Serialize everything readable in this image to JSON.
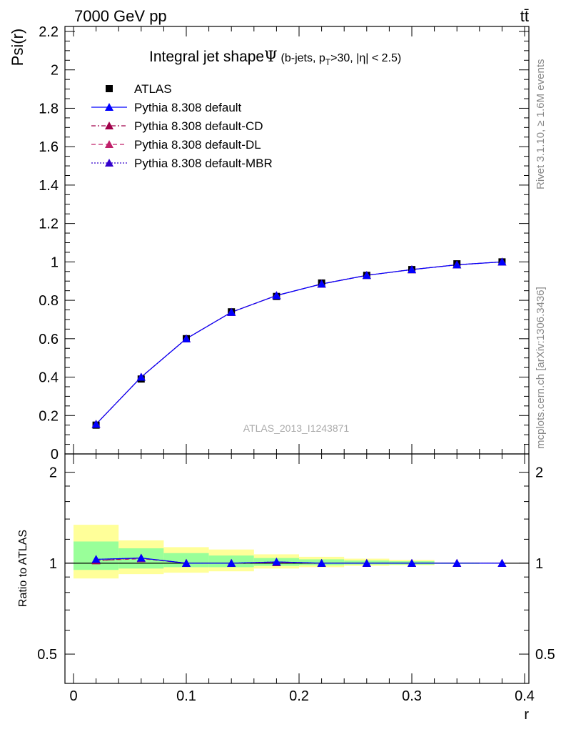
{
  "header": {
    "left": "7000 GeV pp",
    "right": "tt̄"
  },
  "side_labels": {
    "rivet": "Rivet 3.1.10, ≥ 1.6M events",
    "mcplots": "mcplots.cern.ch [arXiv:1306.3436]"
  },
  "watermark": "ATLAS_2013_I1243871",
  "title": {
    "main": "Integral jet shape",
    "symbol": "Ψ",
    "cuts_pre": "(b-jets, p",
    "cuts_sub": "T",
    "cuts_post": ">30, |η| < 2.5)"
  },
  "colors": {
    "data": "#000000",
    "default": "#0000ff",
    "cd": "#a0004a",
    "dl": "#c0206a",
    "mbr": "#3300cc",
    "band_outer": "#ffff99",
    "band_inner": "#99ff99"
  },
  "chart_data": [
    {
      "type": "line",
      "xlabel": "r",
      "ylabel": "Psi(r)",
      "xlim": [
        0,
        0.4
      ],
      "ylim": [
        0,
        2.2
      ],
      "yticks": [
        0,
        0.2,
        0.4,
        0.6,
        0.8,
        1,
        1.2,
        1.4,
        1.6,
        1.8,
        2,
        2.2
      ],
      "ytick_labels": [
        "0",
        "0.2",
        "0.4",
        "0.6",
        "0.8",
        "1",
        "1.2",
        "1.4",
        "1.6",
        "1.8",
        "2",
        "2.2"
      ],
      "x": [
        0.02,
        0.06,
        0.1,
        0.14,
        0.18,
        0.22,
        0.26,
        0.3,
        0.34,
        0.38
      ],
      "series": [
        {
          "name": "ATLAS",
          "values": [
            0.15,
            0.39,
            0.6,
            0.74,
            0.82,
            0.89,
            0.93,
            0.96,
            0.99,
            1.0
          ]
        },
        {
          "name": "Pythia 8.308 default",
          "values": [
            0.155,
            0.4,
            0.6,
            0.738,
            0.825,
            0.885,
            0.93,
            0.96,
            0.985,
            1.0
          ]
        },
        {
          "name": "Pythia 8.308 default-CD",
          "values": [
            0.155,
            0.4,
            0.6,
            0.738,
            0.825,
            0.885,
            0.93,
            0.96,
            0.985,
            1.0
          ]
        },
        {
          "name": "Pythia 8.308 default-DL",
          "values": [
            0.155,
            0.4,
            0.6,
            0.738,
            0.825,
            0.885,
            0.93,
            0.96,
            0.985,
            1.0
          ]
        },
        {
          "name": "Pythia 8.308 default-MBR",
          "values": [
            0.155,
            0.4,
            0.6,
            0.738,
            0.825,
            0.885,
            0.93,
            0.96,
            0.985,
            1.0
          ]
        }
      ],
      "legend": "top-left"
    },
    {
      "type": "line",
      "xlabel": "r",
      "ylabel": "Ratio to ATLAS",
      "xlim": [
        0,
        0.4
      ],
      "xticks": [
        0,
        0.1,
        0.2,
        0.3,
        0.4
      ],
      "xtick_labels": [
        "0",
        "0.1",
        "0.2",
        "0.3",
        "0.4"
      ],
      "ylim": [
        0.4,
        2.3
      ],
      "yscale": "log",
      "yticks": [
        0.5,
        1,
        2
      ],
      "ytick_labels": [
        "0.5",
        "1",
        "2"
      ],
      "x": [
        0.02,
        0.06,
        0.1,
        0.14,
        0.18,
        0.22,
        0.26,
        0.3,
        0.34,
        0.38
      ],
      "bins": [
        [
          0,
          0.04
        ],
        [
          0.04,
          0.08
        ],
        [
          0.08,
          0.12
        ],
        [
          0.12,
          0.16
        ],
        [
          0.16,
          0.2
        ],
        [
          0.2,
          0.24
        ],
        [
          0.24,
          0.28
        ],
        [
          0.28,
          0.32
        ],
        [
          0.32,
          0.36
        ],
        [
          0.36,
          0.4
        ]
      ],
      "band_inner": [
        [
          0.95,
          1.18
        ],
        [
          0.96,
          1.12
        ],
        [
          0.97,
          1.08
        ],
        [
          0.97,
          1.06
        ],
        [
          0.98,
          1.04
        ],
        [
          0.985,
          1.03
        ],
        [
          0.99,
          1.02
        ],
        [
          0.99,
          1.015
        ],
        [
          0.995,
          1.005
        ],
        [
          0.998,
          1.002
        ]
      ],
      "band_outer": [
        [
          0.89,
          1.34
        ],
        [
          0.92,
          1.19
        ],
        [
          0.93,
          1.13
        ],
        [
          0.94,
          1.11
        ],
        [
          0.96,
          1.07
        ],
        [
          0.97,
          1.05
        ],
        [
          0.98,
          1.035
        ],
        [
          0.985,
          1.025
        ],
        [
          0.995,
          1.005
        ],
        [
          0.998,
          1.002
        ]
      ],
      "series": [
        {
          "name": "Pythia 8.308 default",
          "values": [
            1.03,
            1.04,
            1.0,
            1.0,
            1.01,
            1.0,
            1.0,
            1.0,
            1.0,
            1.0
          ]
        },
        {
          "name": "Pythia 8.308 default-CD",
          "values": [
            1.02,
            1.04,
            1.0,
            1.0,
            1.005,
            1.0,
            1.0,
            1.0,
            1.0,
            1.0
          ]
        },
        {
          "name": "Pythia 8.308 default-DL",
          "values": [
            1.02,
            1.035,
            1.0,
            1.0,
            1.005,
            1.0,
            1.0,
            1.0,
            1.0,
            1.0
          ]
        },
        {
          "name": "Pythia 8.308 default-MBR",
          "values": [
            1.03,
            1.04,
            1.0,
            1.0,
            1.01,
            1.0,
            1.0,
            1.0,
            1.0,
            1.0
          ]
        }
      ]
    }
  ]
}
